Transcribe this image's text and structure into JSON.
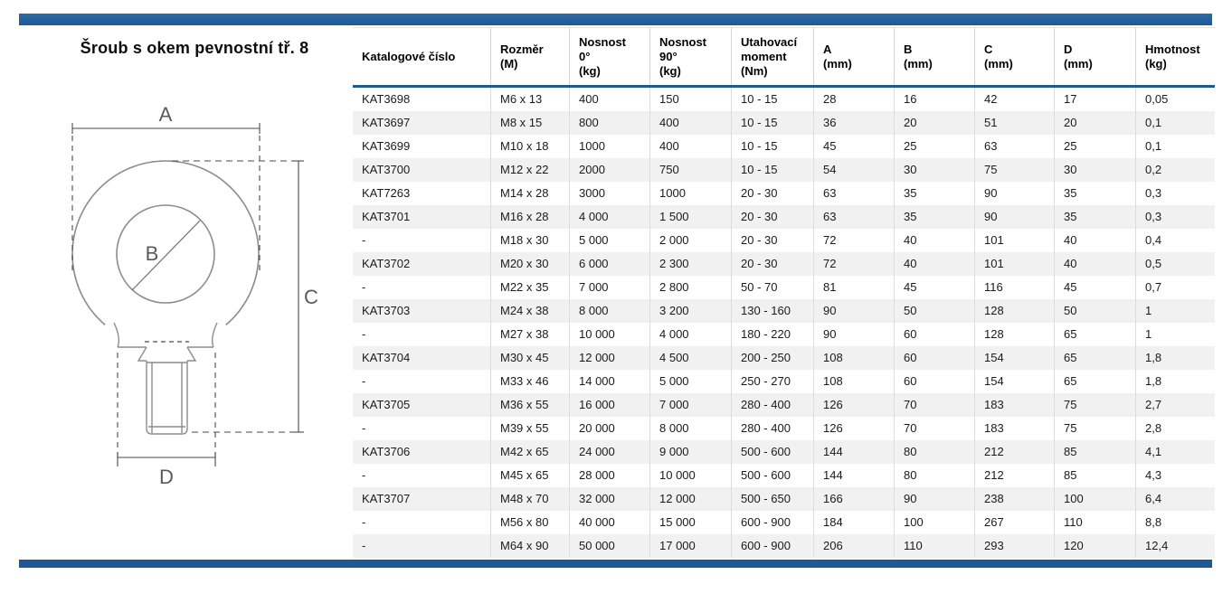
{
  "page": {
    "title": "Šroub s okem pevnostní tř. 8"
  },
  "colors": {
    "accent_blue": "#1d5a95",
    "row_alternate": "#f1f1f1",
    "drawing_line_gray": "#8c8c8c"
  },
  "diagram": {
    "description": "eye-bolt-technical-drawing",
    "dim_a": "A",
    "dim_b": "B",
    "dim_c": "C",
    "dim_d": "D"
  },
  "table": {
    "columns": [
      "Katalogové číslo",
      "Rozměr\n(M)",
      "Nosnost\n0°\n(kg)",
      "Nosnost\n90°\n(kg)",
      "Utahovací\nmoment\n(Nm)",
      "A\n(mm)",
      "B\n(mm)",
      "C\n(mm)",
      "D\n(mm)",
      "Hmotnost\n(kg)"
    ],
    "rows": [
      [
        "KAT3698",
        "M6 x 13",
        "400",
        "150",
        "10 - 15",
        "28",
        "16",
        "42",
        "17",
        "0,05"
      ],
      [
        "KAT3697",
        "M8 x 15",
        "800",
        "400",
        "10 - 15",
        "36",
        "20",
        "51",
        "20",
        "0,1"
      ],
      [
        "KAT3699",
        "M10 x 18",
        "1000",
        "400",
        "10 - 15",
        "45",
        "25",
        "63",
        "25",
        "0,1"
      ],
      [
        "KAT3700",
        "M12 x 22",
        "2000",
        "750",
        "10 - 15",
        "54",
        "30",
        "75",
        "30",
        "0,2"
      ],
      [
        "KAT7263",
        "M14 x 28",
        "3000",
        "1000",
        "20 - 30",
        "63",
        "35",
        "90",
        "35",
        "0,3"
      ],
      [
        "KAT3701",
        "M16 x 28",
        "4 000",
        "1 500",
        "20 - 30",
        "63",
        "35",
        "90",
        "35",
        "0,3"
      ],
      [
        "-",
        "M18 x 30",
        "5 000",
        "2 000",
        "20 - 30",
        "72",
        "40",
        "101",
        "40",
        "0,4"
      ],
      [
        "KAT3702",
        "M20 x 30",
        "6 000",
        "2 300",
        "20 - 30",
        "72",
        "40",
        "101",
        "40",
        "0,5"
      ],
      [
        "-",
        "M22 x 35",
        "7 000",
        "2 800",
        "50 - 70",
        "81",
        "45",
        "116",
        "45",
        "0,7"
      ],
      [
        "KAT3703",
        "M24 x 38",
        "8 000",
        "3 200",
        "130 - 160",
        "90",
        "50",
        "128",
        "50",
        "1"
      ],
      [
        "-",
        "M27 x 38",
        "10 000",
        "4 000",
        "180 - 220",
        "90",
        "60",
        "128",
        "65",
        "1"
      ],
      [
        "KAT3704",
        "M30 x 45",
        "12 000",
        "4 500",
        "200 - 250",
        "108",
        "60",
        "154",
        "65",
        "1,8"
      ],
      [
        "-",
        "M33 x 46",
        "14 000",
        "5 000",
        "250 - 270",
        "108",
        "60",
        "154",
        "65",
        "1,8"
      ],
      [
        "KAT3705",
        "M36 x 55",
        "16 000",
        "7 000",
        "280 - 400",
        "126",
        "70",
        "183",
        "75",
        "2,7"
      ],
      [
        "-",
        "M39 x 55",
        "20 000",
        "8 000",
        "280 - 400",
        "126",
        "70",
        "183",
        "75",
        "2,8"
      ],
      [
        "KAT3706",
        "M42 x 65",
        "24 000",
        "9 000",
        "500 - 600",
        "144",
        "80",
        "212",
        "85",
        "4,1"
      ],
      [
        "-",
        "M45 x 65",
        "28 000",
        "10 000",
        "500 - 600",
        "144",
        "80",
        "212",
        "85",
        "4,3"
      ],
      [
        "KAT3707",
        "M48 x 70",
        "32 000",
        "12 000",
        "500 - 650",
        "166",
        "90",
        "238",
        "100",
        "6,4"
      ],
      [
        "-",
        "M56 x 80",
        "40 000",
        "15 000",
        "600 - 900",
        "184",
        "100",
        "267",
        "110",
        "8,8"
      ],
      [
        "-",
        "M64 x 90",
        "50 000",
        "17 000",
        "600 - 900",
        "206",
        "110",
        "293",
        "120",
        "12,4"
      ]
    ]
  }
}
